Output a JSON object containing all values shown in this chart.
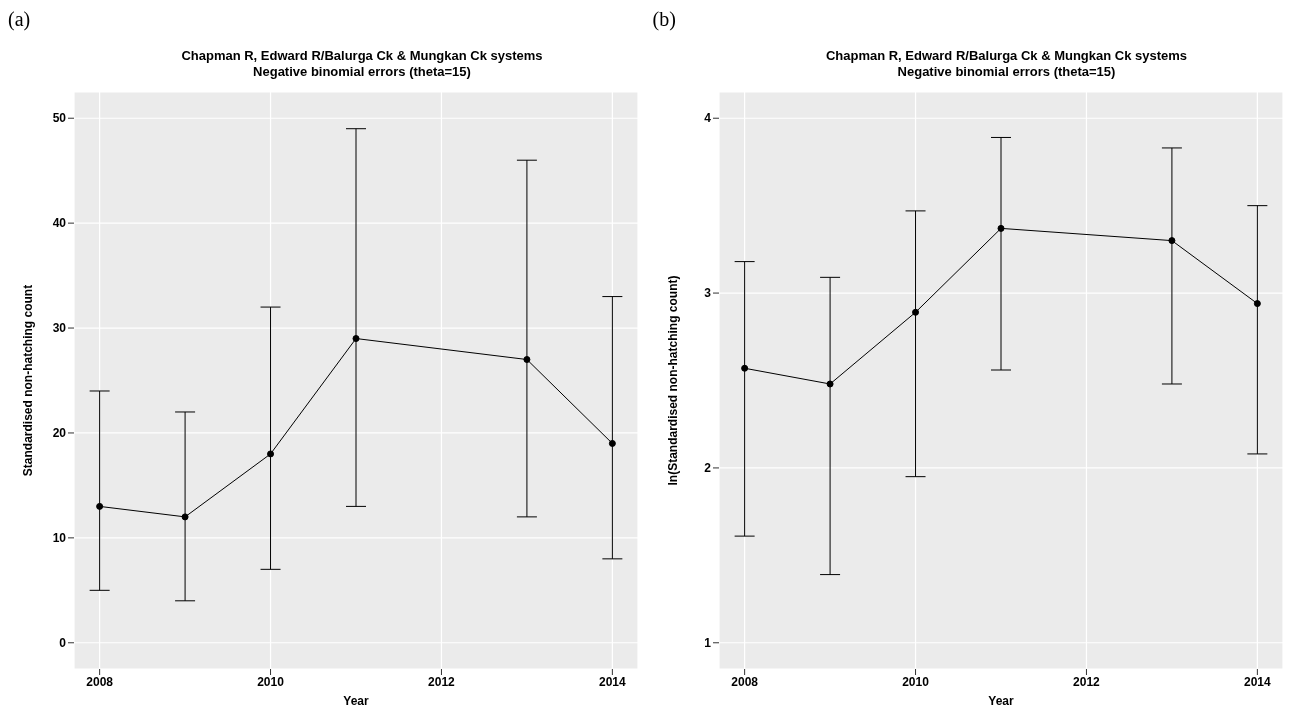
{
  "chart_data": [
    {
      "type": "line",
      "annotations": [
        "(a)"
      ],
      "title": "Chapman R, Edward R/Balurga Ck & Mungkan Ck systems",
      "subtitle": "Negative binomial errors (theta=15)",
      "xlabel": "Year",
      "ylabel": "Standardised non-hatching count",
      "x": [
        2008,
        2009,
        2010,
        2011,
        2013,
        2014
      ],
      "xlim": [
        2007.7,
        2014.3
      ],
      "xticks": [
        2008,
        2010,
        2012,
        2014
      ],
      "ylim": [
        -2.5,
        52.5
      ],
      "yticks": [
        0,
        10,
        20,
        30,
        40,
        50
      ],
      "grid": true,
      "marker": "circle",
      "line_style": "solid",
      "series": [
        {
          "color": "#000000",
          "values": [
            13,
            12,
            18,
            29,
            27,
            19
          ],
          "errors": [
            [
              5,
              24
            ],
            [
              4,
              22
            ],
            [
              7,
              32
            ],
            [
              13,
              49
            ],
            [
              12,
              46
            ],
            [
              8,
              33
            ]
          ]
        }
      ]
    },
    {
      "type": "line",
      "annotations": [
        "(b)"
      ],
      "title": "Chapman R, Edward R/Balurga Ck & Mungkan Ck systems",
      "subtitle": "Negative binomial errors (theta=15)",
      "xlabel": "Year",
      "ylabel": "ln(Standardised non-hatching count)",
      "x": [
        2008,
        2009,
        2010,
        2011,
        2013,
        2014
      ],
      "xlim": [
        2007.7,
        2014.3
      ],
      "xticks": [
        2008,
        2010,
        2012,
        2014
      ],
      "ylim": [
        0.85,
        4.15
      ],
      "yticks": [
        1,
        2,
        3,
        4
      ],
      "grid": true,
      "marker": "circle",
      "line_style": "solid",
      "series": [
        {
          "color": "#000000",
          "values": [
            2.57,
            2.48,
            2.89,
            3.37,
            3.3,
            2.94
          ],
          "errors": [
            [
              1.61,
              3.18
            ],
            [
              1.39,
              3.09
            ],
            [
              1.95,
              3.47
            ],
            [
              2.56,
              3.89
            ],
            [
              2.48,
              3.83
            ],
            [
              2.08,
              3.5
            ]
          ]
        }
      ]
    }
  ]
}
